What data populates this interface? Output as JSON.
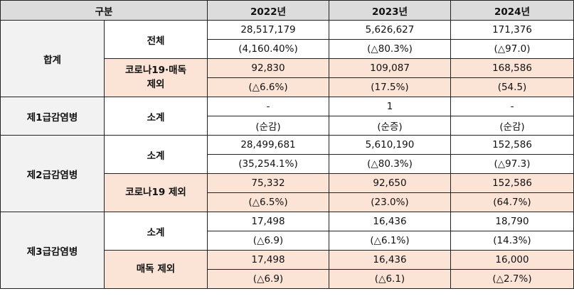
{
  "header": {
    "category": "구분",
    "years": [
      "2022년",
      "2023년",
      "2024년"
    ]
  },
  "groups": [
    {
      "label": "합계",
      "subs": [
        {
          "label": "전체",
          "highlight": false,
          "values": [
            "28,517,179",
            "5,626,627",
            "171,376"
          ],
          "changes": [
            "(4,160.40%)",
            "(△80.3%)",
            "(△97.0)"
          ]
        },
        {
          "label": "코로나19·매독\n제외",
          "highlight": true,
          "values": [
            "92,830",
            "109,087",
            "168,586"
          ],
          "changes": [
            "(△6.6%)",
            "(17.5%)",
            "(54.5)"
          ]
        }
      ]
    },
    {
      "label": "제1급감염병",
      "subs": [
        {
          "label": "소계",
          "highlight": false,
          "values": [
            "-",
            "1",
            "-"
          ],
          "changes": [
            "(순감)",
            "(순증)",
            "(순감)"
          ]
        }
      ]
    },
    {
      "label": "제2급감염병",
      "subs": [
        {
          "label": "소계",
          "highlight": false,
          "values": [
            "28,499,681",
            "5,610,190",
            "152,586"
          ],
          "changes": [
            "(35,254.1%)",
            "(△80.3%)",
            "(△97.3)"
          ]
        },
        {
          "label": "코로나19 제외",
          "highlight": true,
          "values": [
            "75,332",
            "92,650",
            "152,586"
          ],
          "changes": [
            "(△6.5%)",
            "(23.0%)",
            "(64.7%)"
          ]
        }
      ]
    },
    {
      "label": "제3급감염병",
      "subs": [
        {
          "label": "소계",
          "highlight": false,
          "values": [
            "17,498",
            "16,436",
            "18,790"
          ],
          "changes": [
            "(△6.9)",
            "(△6.1%)",
            "(14.3%)"
          ]
        },
        {
          "label": "매독 제외",
          "highlight": true,
          "values": [
            "17,498",
            "16,436",
            "16,000"
          ],
          "changes": [
            "(△6.9)",
            "(△6.1)",
            "(△2.7%)"
          ]
        }
      ]
    }
  ],
  "colors": {
    "header_bg": "#dcdcdc",
    "group_bg": "#f2f2f2",
    "highlight_bg": "#fbe3d6",
    "border": "#222222"
  }
}
